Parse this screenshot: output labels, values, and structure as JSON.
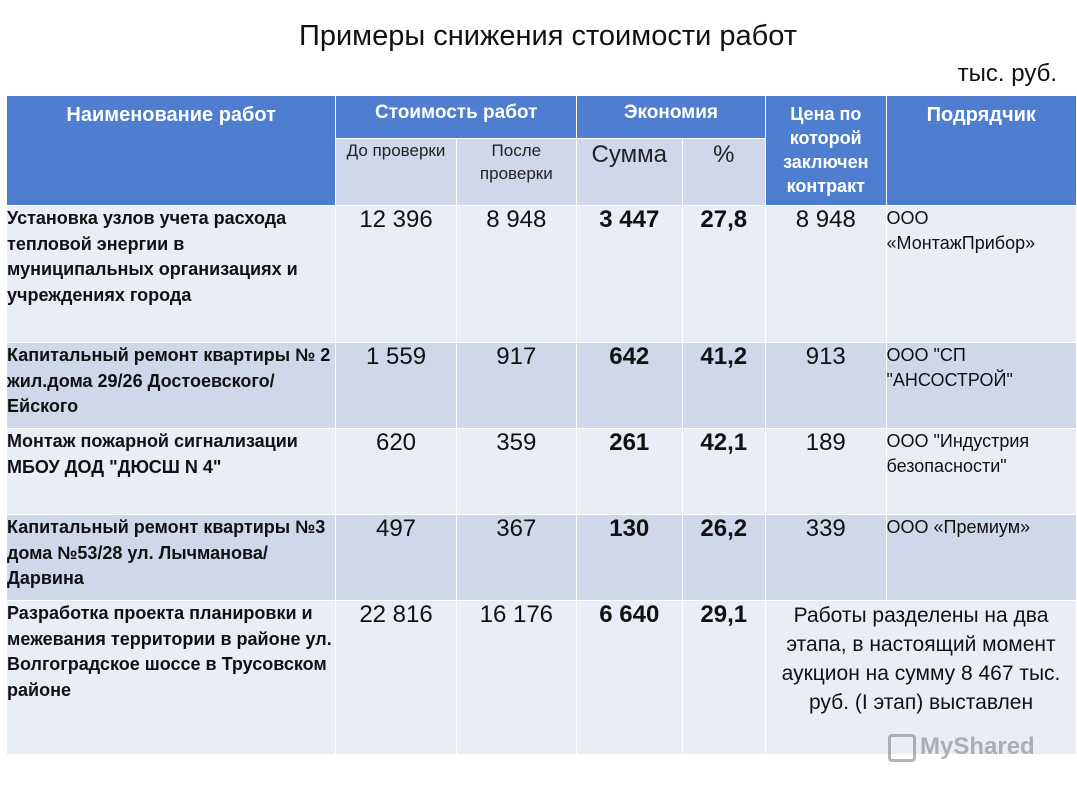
{
  "title": "Примеры снижения стоимости работ",
  "units": "тыс. руб.",
  "header": {
    "name": "Наименование работ",
    "cost": "Стоимость работ",
    "savings": "Экономия",
    "price": "Цена по которой заключен контракт",
    "contractor": "Подрядчик",
    "before": "До проверки",
    "after": "После проверки",
    "sum": "Сумма",
    "percent": "%"
  },
  "rows": [
    {
      "name": "Установка узлов учета расхода тепловой энергии в муниципальных организациях и учреждениях города",
      "before": "12 396",
      "after": "8 948",
      "sum": "3 447",
      "percent": "27,8",
      "price": "8 948",
      "contractor": "ООО «МонтажПрибор»"
    },
    {
      "name": "Капитальный ремонт квартиры № 2 жил.дома 29/26 Достоевского/Ейского",
      "before": "1 559",
      "after": "917",
      "sum": "642",
      "percent": "41,2",
      "price": "913",
      "contractor": "ООО \"СП \"АНСОСТРОЙ\""
    },
    {
      "name": "Монтаж пожарной сигнализации МБОУ ДОД \"ДЮСШ N 4\"",
      "before": "620",
      "after": "359",
      "sum": "261",
      "percent": "42,1",
      "price": "189",
      "contractor": "ООО \"Индустрия безопасности\""
    },
    {
      "name": "Капитальный ремонт квартиры №3 дома №53/28 ул. Лычманова/Дарвина",
      "before": "497",
      "after": "367",
      "sum": "130",
      "percent": "26,2",
      "price": "339",
      "contractor": "ООО «Премиум»"
    },
    {
      "name": "Разработка проекта планировки и межевания территории в районе ул. Волгоградское шоссе в Трусовском районе",
      "before": "22 816",
      "after": "16 176",
      "sum": "6 640",
      "percent": "29,1",
      "note": "Работы разделены на два этапа, в настоящий момент аукцион на сумму 8 467 тыс. руб. (I этап) выставлен"
    }
  ],
  "watermark": "MyShared"
}
